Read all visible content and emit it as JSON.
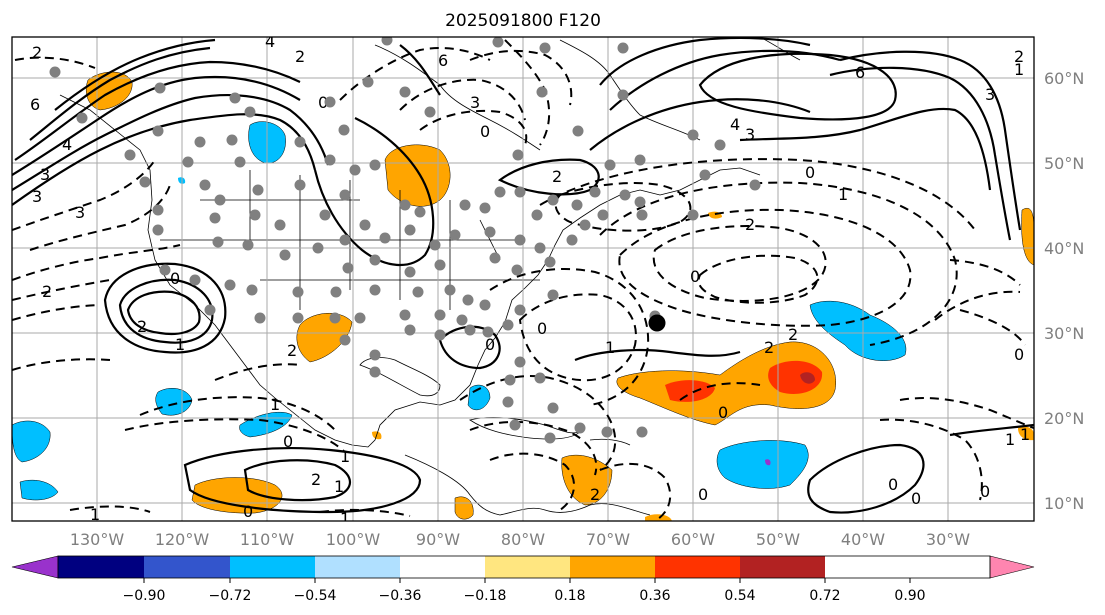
{
  "title": "2025091800 F120",
  "longitude_labels": [
    "130°W",
    "120°W",
    "110°W",
    "100°W",
    "90°W",
    "80°W",
    "70°W",
    "60°W",
    "50°W",
    "40°W",
    "30°W"
  ],
  "latitude_labels": [
    "60°N",
    "50°N",
    "40°N",
    "30°N",
    "20°N",
    "10°N"
  ],
  "colorbar": {
    "ticks": [
      "−0.90",
      "−0.72",
      "−0.54",
      "−0.36",
      "−0.18",
      "0.18",
      "0.36",
      "0.54",
      "0.72",
      "0.90"
    ],
    "colors": [
      "#9932cc",
      "#000080",
      "#3355cc",
      "#00bfff",
      "#b0e0ff",
      "#ffffff",
      "#ffe680",
      "#ffa500",
      "#ff3300",
      "#b22222",
      "#ff85b0"
    ]
  },
  "contour_labels": [
    "2",
    "6",
    "4",
    "2",
    "3",
    "0",
    "3",
    "6",
    "3",
    "4",
    "2",
    "1",
    "0",
    "1",
    "1",
    "6",
    "4",
    "3",
    "3",
    "0",
    "2",
    "1",
    "0",
    "2",
    "1",
    "3",
    "2",
    "0",
    "2",
    "2",
    "1",
    "1",
    "0",
    "0",
    "2",
    "2",
    "0",
    "1",
    "0",
    "0",
    "2",
    "1",
    "0",
    "1",
    "0",
    "2",
    "1",
    "0",
    "0",
    "0"
  ],
  "fill_colors": {
    "orange": "#ffa500",
    "red": "#ff3300",
    "darkred": "#b22222",
    "blue": "#00bfff",
    "lightblue": "#b0e0ff",
    "purple": "#9932cc"
  }
}
